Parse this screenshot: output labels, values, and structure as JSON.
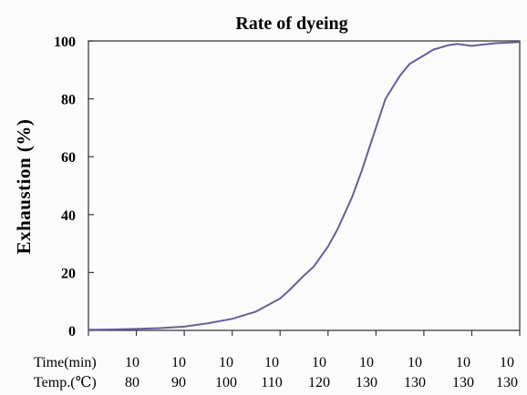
{
  "chart_data": {
    "type": "line",
    "title": "Rate of dyeing",
    "ylabel": "Exhaustion (%)",
    "xlabel": "",
    "ylim": [
      0,
      100
    ],
    "yticks": [
      0,
      20,
      40,
      60,
      80,
      100
    ],
    "grid": false,
    "line_color": "#6a5d9a",
    "x_rows": [
      {
        "label": "Time(min)",
        "values": [
          "10",
          "10",
          "10",
          "10",
          "10",
          "10",
          "10",
          "10",
          "10"
        ]
      },
      {
        "label": "Temp.(℃)",
        "values": [
          "80",
          "90",
          "100",
          "110",
          "120",
          "130",
          "130",
          "130",
          "130"
        ]
      }
    ],
    "x_range": [
      0,
      90
    ],
    "series": [
      {
        "x": [
          0,
          5,
          10,
          15,
          20,
          25,
          30,
          35,
          40,
          42,
          45,
          47,
          50,
          52,
          55,
          57,
          60,
          62,
          65,
          67,
          70,
          72,
          75,
          77,
          80,
          82,
          85,
          90
        ],
        "y": [
          0.2,
          0.3,
          0.5,
          0.8,
          1.3,
          2.5,
          4,
          6.5,
          11,
          14,
          19,
          22,
          29,
          35,
          46,
          55,
          70,
          80,
          88,
          92,
          95,
          97,
          98.5,
          99,
          98.3,
          98.7,
          99.2,
          99.6
        ]
      }
    ]
  }
}
